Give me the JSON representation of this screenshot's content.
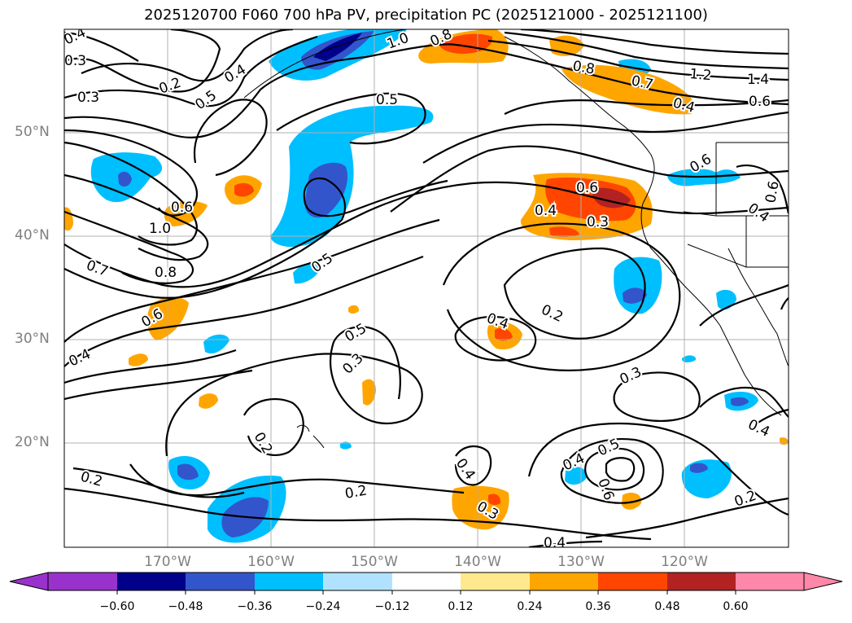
{
  "title": "2025120700 F060 700 hPa PV, precipitation PC (2025121000 - 2025121100)",
  "lat_labels": [
    "50°N",
    "40°N",
    "30°N",
    "20°N"
  ],
  "lon_labels": [
    "170°W",
    "160°W",
    "150°W",
    "140°W",
    "130°W",
    "120°W"
  ],
  "colorbar": {
    "colors": [
      "#9932cc",
      "#00008b",
      "#3355cc",
      "#00bfff",
      "#b0e2ff",
      "#ffffff",
      "#ffe98c",
      "#ffa500",
      "#ff4500",
      "#b22222",
      "#ff88aa"
    ],
    "ticks": [
      "−0.60",
      "−0.48",
      "−0.36",
      "−0.24",
      "−0.12",
      "0.12",
      "0.24",
      "0.36",
      "0.48",
      "0.60"
    ]
  },
  "contour_labels": [
    "0.4",
    "0.3",
    "0.2",
    "0.3",
    "0.5",
    "0.4",
    "1.0",
    "0.8",
    "0.8",
    "0.7",
    "1.2",
    "1.4",
    "0.6",
    "0.4",
    "0.5",
    "0.6",
    "1.0",
    "0.7",
    "0.8",
    "0.6",
    "0.4",
    "0.6",
    "0.3",
    "0.4",
    "0.6",
    "0.6",
    "0.5",
    "0.4",
    "0.2",
    "0.4",
    "0.5",
    "0.3",
    "0.3",
    "0.2",
    "0.4",
    "0.5",
    "0.6",
    "0.4",
    "0.3",
    "0.2",
    "0.2",
    "0.4",
    "0.2",
    "0.4"
  ]
}
